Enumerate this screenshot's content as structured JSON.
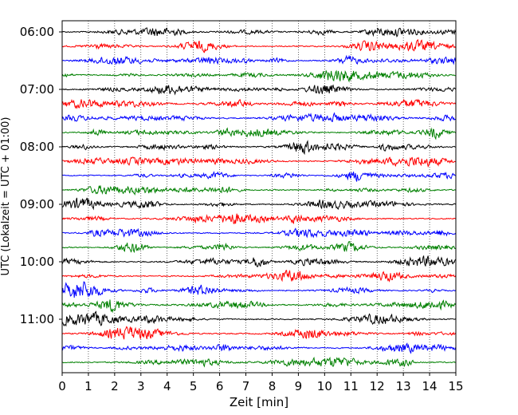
{
  "chart_data": {
    "type": "line",
    "title": "",
    "xlabel": "Zeit  [min]",
    "ylabel": "UTC (Lokalzeit = UTC + 01:00)",
    "xlim": [
      0,
      15
    ],
    "x_ticks": [
      "0",
      "1",
      "2",
      "3",
      "4",
      "5",
      "6",
      "7",
      "8",
      "9",
      "10",
      "11",
      "12",
      "13",
      "14",
      "15"
    ],
    "y_ticks": [
      "06:00",
      "07:00",
      "08:00",
      "09:00",
      "10:00",
      "11:00"
    ],
    "grid": "vertical dotted at each minute",
    "line_colors": [
      "#000000",
      "#ff0000",
      "#0000ff",
      "#008000"
    ],
    "row_interval_minutes": 15,
    "rows": [
      {
        "start": "06:00",
        "color": "#000000"
      },
      {
        "start": "06:15",
        "color": "#ff0000"
      },
      {
        "start": "06:30",
        "color": "#0000ff"
      },
      {
        "start": "06:45",
        "color": "#008000"
      },
      {
        "start": "07:00",
        "color": "#000000"
      },
      {
        "start": "07:15",
        "color": "#ff0000"
      },
      {
        "start": "07:30",
        "color": "#0000ff"
      },
      {
        "start": "07:45",
        "color": "#008000"
      },
      {
        "start": "08:00",
        "color": "#000000"
      },
      {
        "start": "08:15",
        "color": "#ff0000"
      },
      {
        "start": "08:30",
        "color": "#0000ff"
      },
      {
        "start": "08:45",
        "color": "#008000"
      },
      {
        "start": "09:00",
        "color": "#000000"
      },
      {
        "start": "09:15",
        "color": "#ff0000"
      },
      {
        "start": "09:30",
        "color": "#0000ff"
      },
      {
        "start": "09:45",
        "color": "#008000"
      },
      {
        "start": "10:00",
        "color": "#000000"
      },
      {
        "start": "10:15",
        "color": "#ff0000"
      },
      {
        "start": "10:30",
        "color": "#0000ff"
      },
      {
        "start": "10:45",
        "color": "#008000"
      },
      {
        "start": "11:00",
        "color": "#000000"
      },
      {
        "start": "11:15",
        "color": "#ff0000"
      },
      {
        "start": "11:30",
        "color": "#0000ff"
      },
      {
        "start": "11:45",
        "color": "#008000"
      }
    ]
  }
}
